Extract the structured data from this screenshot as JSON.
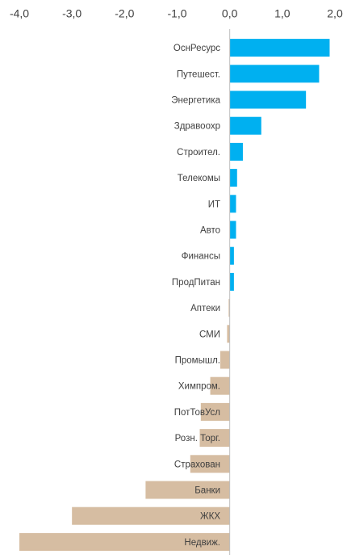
{
  "chart_data": {
    "type": "barh",
    "categories": [
      "ОснРесурс",
      "Путешест.",
      "Энергетика",
      "Здравоохр",
      "Строител.",
      "Телекомы",
      "ИТ",
      "Авто",
      "Финансы",
      "ПродПитан",
      "Аптеки",
      "СМИ",
      "Промышл.",
      "Химпром.",
      "ПотТовУсл",
      "Розн. Торг.",
      "Страхован",
      "Банки",
      "ЖКХ",
      "Недвиж."
    ],
    "values": [
      1.9,
      1.7,
      1.45,
      0.6,
      0.25,
      0.14,
      0.12,
      0.12,
      0.08,
      0.08,
      -0.02,
      -0.05,
      -0.18,
      -0.37,
      -0.55,
      -0.57,
      -0.75,
      -1.6,
      -3.0,
      -4.0
    ],
    "positive_color": "#00b0f0",
    "negative_color": "#d6bda2",
    "xlim": [
      -4,
      2
    ],
    "xticks": [
      {
        "value": -4,
        "label": "-4,0"
      },
      {
        "value": -3,
        "label": "-3,0"
      },
      {
        "value": -2,
        "label": "-2,0"
      },
      {
        "value": -1,
        "label": "-1,0"
      },
      {
        "value": 0,
        "label": "0,0"
      },
      {
        "value": 1,
        "label": "1,0"
      },
      {
        "value": 2,
        "label": "2,0"
      }
    ],
    "grid": false
  }
}
